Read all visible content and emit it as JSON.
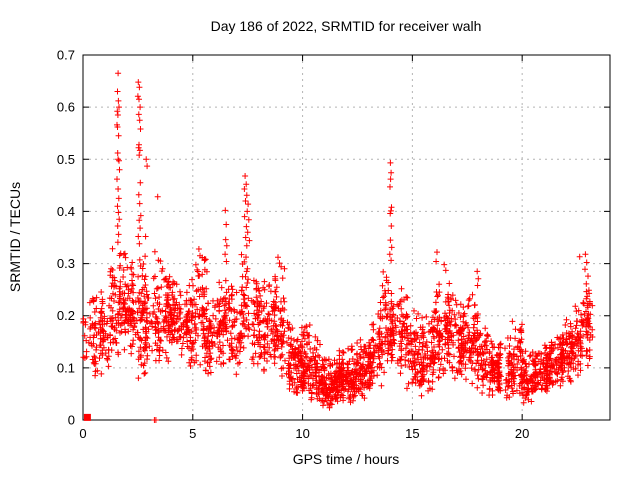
{
  "window": {
    "background": "#ffffff"
  },
  "chart_data": {
    "type": "scatter",
    "title": "Day 186 of 2022, SRMTID for receiver walh",
    "xlabel": "GPS time / hours",
    "ylabel": "SRMTID / TECUs",
    "xlim": [
      0,
      24
    ],
    "ylim": [
      0,
      0.7
    ],
    "xticks": [
      0,
      5,
      10,
      15,
      20
    ],
    "yticks": [
      0,
      0.1,
      0.2,
      0.3,
      0.4,
      0.5,
      0.6,
      0.7
    ],
    "grid": true,
    "grid_style": "dashed",
    "legend": "none",
    "marker": {
      "shape": "plus",
      "color": "#ff0000",
      "size": 7
    },
    "colors": {
      "axis": "#000000",
      "grid": "#b4b4b4",
      "text": "#000000",
      "background": "#ffffff"
    },
    "series_name": "SRMTID",
    "origin_square_point": [
      0.2,
      0.005
    ],
    "zero_points": [
      [
        3.25,
        0.0
      ],
      [
        3.32,
        0.0
      ]
    ],
    "spike_points": [
      [
        1.6,
        0.665
      ],
      [
        1.57,
        0.63
      ],
      [
        1.61,
        0.612
      ],
      [
        1.64,
        0.6
      ],
      [
        1.56,
        0.592
      ],
      [
        1.59,
        0.585
      ],
      [
        1.55,
        0.566
      ],
      [
        1.57,
        0.562
      ],
      [
        1.62,
        0.545
      ],
      [
        1.58,
        0.512
      ],
      [
        1.6,
        0.5
      ],
      [
        1.64,
        0.497
      ],
      [
        1.66,
        0.48
      ],
      [
        1.55,
        0.462
      ],
      [
        1.6,
        0.443
      ],
      [
        1.63,
        0.425
      ],
      [
        1.57,
        0.41
      ],
      [
        1.61,
        0.398
      ],
      [
        1.65,
        0.385
      ],
      [
        1.58,
        0.372
      ],
      [
        1.62,
        0.356
      ],
      [
        1.59,
        0.341
      ],
      [
        2.52,
        0.648
      ],
      [
        2.57,
        0.638
      ],
      [
        2.5,
        0.621
      ],
      [
        2.55,
        0.615
      ],
      [
        2.6,
        0.6
      ],
      [
        2.54,
        0.586
      ],
      [
        2.58,
        0.575
      ],
      [
        2.62,
        0.558
      ],
      [
        2.55,
        0.528
      ],
      [
        2.53,
        0.522
      ],
      [
        2.59,
        0.517
      ],
      [
        2.56,
        0.508
      ],
      [
        2.61,
        0.455
      ],
      [
        2.54,
        0.432
      ],
      [
        2.58,
        0.415
      ],
      [
        2.63,
        0.392
      ],
      [
        2.56,
        0.383
      ],
      [
        2.6,
        0.368
      ],
      [
        2.52,
        0.352
      ],
      [
        2.57,
        0.338
      ],
      [
        2.88,
        0.5
      ],
      [
        2.92,
        0.487
      ],
      [
        3.4,
        0.428
      ],
      [
        2.85,
        0.352
      ],
      [
        5.28,
        0.328
      ],
      [
        5.33,
        0.315
      ],
      [
        6.48,
        0.402
      ],
      [
        6.52,
        0.375
      ],
      [
        6.5,
        0.346
      ],
      [
        6.55,
        0.334
      ],
      [
        6.47,
        0.318
      ],
      [
        6.53,
        0.304
      ],
      [
        7.38,
        0.468
      ],
      [
        7.43,
        0.452
      ],
      [
        7.35,
        0.443
      ],
      [
        7.46,
        0.431
      ],
      [
        7.4,
        0.42
      ],
      [
        7.52,
        0.414
      ],
      [
        7.48,
        0.4
      ],
      [
        7.36,
        0.39
      ],
      [
        7.55,
        0.384
      ],
      [
        7.44,
        0.371
      ],
      [
        7.5,
        0.36
      ],
      [
        7.41,
        0.35
      ],
      [
        7.58,
        0.344
      ],
      [
        7.46,
        0.334
      ],
      [
        8.88,
        0.312
      ],
      [
        8.95,
        0.301
      ],
      [
        9.02,
        0.294
      ],
      [
        14.0,
        0.493
      ],
      [
        14.03,
        0.474
      ],
      [
        14.01,
        0.462
      ],
      [
        13.98,
        0.447
      ],
      [
        14.05,
        0.408
      ],
      [
        14.02,
        0.401
      ],
      [
        13.99,
        0.396
      ],
      [
        14.04,
        0.372
      ],
      [
        14.0,
        0.345
      ],
      [
        14.06,
        0.331
      ],
      [
        13.97,
        0.318
      ],
      [
        14.03,
        0.306
      ],
      [
        16.12,
        0.322
      ],
      [
        16.08,
        0.304
      ],
      [
        16.45,
        0.298
      ],
      [
        16.52,
        0.287
      ],
      [
        17.95,
        0.285
      ],
      [
        18.0,
        0.271
      ],
      [
        17.97,
        0.258
      ],
      [
        22.62,
        0.313
      ],
      [
        22.88,
        0.318
      ],
      [
        22.94,
        0.302
      ],
      [
        22.86,
        0.289
      ],
      [
        23.0,
        0.276
      ],
      [
        22.92,
        0.261
      ],
      [
        23.04,
        0.249
      ],
      [
        22.96,
        0.237
      ],
      [
        23.08,
        0.224
      ]
    ],
    "cloud_bins": [
      [
        0.0,
        0.4,
        0.1,
        0.23,
        18
      ],
      [
        0.4,
        0.8,
        0.07,
        0.26,
        35
      ],
      [
        0.8,
        1.2,
        0.08,
        0.27,
        45
      ],
      [
        1.2,
        1.6,
        0.09,
        0.33,
        45
      ],
      [
        1.6,
        2.0,
        0.12,
        0.34,
        55
      ],
      [
        2.0,
        2.4,
        0.12,
        0.32,
        55
      ],
      [
        2.4,
        2.8,
        0.07,
        0.35,
        55
      ],
      [
        2.8,
        3.2,
        0.07,
        0.3,
        45
      ],
      [
        3.2,
        3.6,
        0.08,
        0.33,
        45
      ],
      [
        3.6,
        4.0,
        0.1,
        0.32,
        55
      ],
      [
        4.0,
        4.4,
        0.12,
        0.28,
        55
      ],
      [
        4.4,
        4.8,
        0.12,
        0.25,
        50
      ],
      [
        4.8,
        5.2,
        0.1,
        0.3,
        50
      ],
      [
        5.2,
        5.6,
        0.1,
        0.33,
        50
      ],
      [
        5.6,
        6.0,
        0.08,
        0.25,
        50
      ],
      [
        6.0,
        6.4,
        0.1,
        0.28,
        45
      ],
      [
        6.4,
        6.8,
        0.1,
        0.3,
        45
      ],
      [
        6.8,
        7.2,
        0.08,
        0.27,
        40
      ],
      [
        7.2,
        7.6,
        0.12,
        0.34,
        45
      ],
      [
        7.6,
        8.0,
        0.1,
        0.3,
        45
      ],
      [
        8.0,
        8.4,
        0.08,
        0.28,
        45
      ],
      [
        8.4,
        8.8,
        0.08,
        0.3,
        50
      ],
      [
        8.8,
        9.2,
        0.06,
        0.31,
        50
      ],
      [
        9.2,
        9.6,
        0.05,
        0.2,
        50
      ],
      [
        9.6,
        10.0,
        0.04,
        0.18,
        55
      ],
      [
        10.0,
        10.4,
        0.05,
        0.21,
        55
      ],
      [
        10.4,
        10.8,
        0.03,
        0.17,
        55
      ],
      [
        10.8,
        11.2,
        0.02,
        0.13,
        60
      ],
      [
        11.2,
        11.6,
        0.02,
        0.12,
        60
      ],
      [
        11.6,
        12.0,
        0.03,
        0.14,
        65
      ],
      [
        12.0,
        12.4,
        0.03,
        0.15,
        65
      ],
      [
        12.4,
        12.8,
        0.04,
        0.16,
        60
      ],
      [
        12.8,
        13.2,
        0.05,
        0.18,
        55
      ],
      [
        13.2,
        13.6,
        0.06,
        0.24,
        50
      ],
      [
        13.6,
        14.0,
        0.08,
        0.3,
        45
      ],
      [
        14.0,
        14.4,
        0.08,
        0.28,
        45
      ],
      [
        14.4,
        14.8,
        0.07,
        0.27,
        50
      ],
      [
        14.8,
        15.2,
        0.05,
        0.22,
        50
      ],
      [
        15.2,
        15.6,
        0.04,
        0.2,
        50
      ],
      [
        15.6,
        16.0,
        0.05,
        0.22,
        50
      ],
      [
        16.0,
        16.4,
        0.07,
        0.28,
        55
      ],
      [
        16.4,
        16.8,
        0.08,
        0.28,
        55
      ],
      [
        16.8,
        17.2,
        0.07,
        0.25,
        50
      ],
      [
        17.2,
        17.6,
        0.06,
        0.24,
        50
      ],
      [
        17.6,
        18.0,
        0.06,
        0.26,
        50
      ],
      [
        18.0,
        18.4,
        0.05,
        0.2,
        50
      ],
      [
        18.4,
        18.8,
        0.04,
        0.17,
        50
      ],
      [
        18.8,
        19.2,
        0.04,
        0.16,
        50
      ],
      [
        19.2,
        19.6,
        0.04,
        0.18,
        50
      ],
      [
        19.6,
        20.0,
        0.04,
        0.2,
        50
      ],
      [
        20.0,
        20.4,
        0.03,
        0.14,
        50
      ],
      [
        20.4,
        20.8,
        0.04,
        0.15,
        50
      ],
      [
        20.8,
        21.2,
        0.05,
        0.16,
        50
      ],
      [
        21.2,
        21.6,
        0.05,
        0.17,
        50
      ],
      [
        21.6,
        22.0,
        0.06,
        0.18,
        50
      ],
      [
        22.0,
        22.4,
        0.07,
        0.2,
        50
      ],
      [
        22.4,
        22.8,
        0.08,
        0.24,
        45
      ],
      [
        22.8,
        23.2,
        0.1,
        0.26,
        45
      ]
    ],
    "random_seed": 186
  }
}
